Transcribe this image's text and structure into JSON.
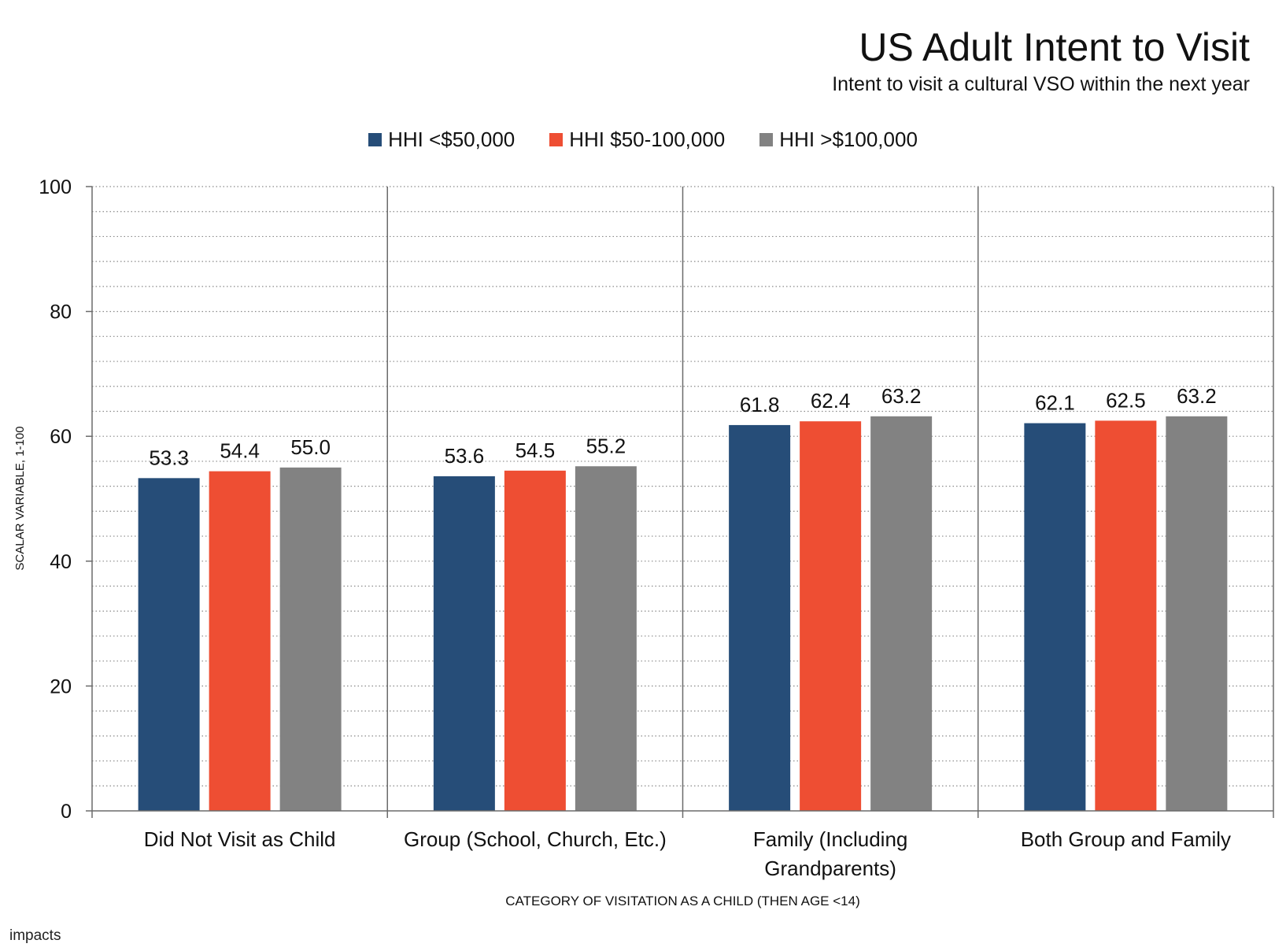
{
  "header": {
    "title": "US Adult Intent to Visit",
    "subtitle": "Intent to visit a cultural VSO within the next year"
  },
  "brand": "impacts",
  "chart_data": {
    "type": "bar",
    "title": "US Adult Intent to Visit",
    "subtitle": "Intent to visit a cultural VSO within the next year",
    "xlabel": "CATEGORY OF VISITATION AS A CHILD (THEN AGE <14)",
    "ylabel": "SCALAR VARIABLE, 1-100",
    "ylim": [
      0,
      100
    ],
    "yticks": [
      "0",
      "20",
      "40",
      "60",
      "80",
      "100"
    ],
    "grid": true,
    "legend_position": "top-center",
    "categories": [
      [
        "Did Not Visit as Child"
      ],
      [
        "Group (School, Church, Etc.)"
      ],
      [
        "Family (Including",
        "Grandparents)"
      ],
      [
        "Both Group and Family"
      ]
    ],
    "series": [
      {
        "name": "HHI <$50,000",
        "color": "#264d78",
        "values": [
          53.3,
          53.6,
          61.8,
          62.1
        ],
        "labels": [
          "53.3",
          "53.6",
          "61.8",
          "62.1"
        ]
      },
      {
        "name": "HHI $50-100,000",
        "color": "#ee4e33",
        "values": [
          54.4,
          54.5,
          62.4,
          62.5
        ],
        "labels": [
          "54.4",
          "54.5",
          "62.4",
          "62.5"
        ]
      },
      {
        "name": "HHI >$100,000",
        "color": "#828282",
        "values": [
          55.0,
          55.2,
          63.2,
          63.2
        ],
        "labels": [
          "55.0",
          "55.2",
          "63.2",
          "63.2"
        ]
      }
    ]
  }
}
